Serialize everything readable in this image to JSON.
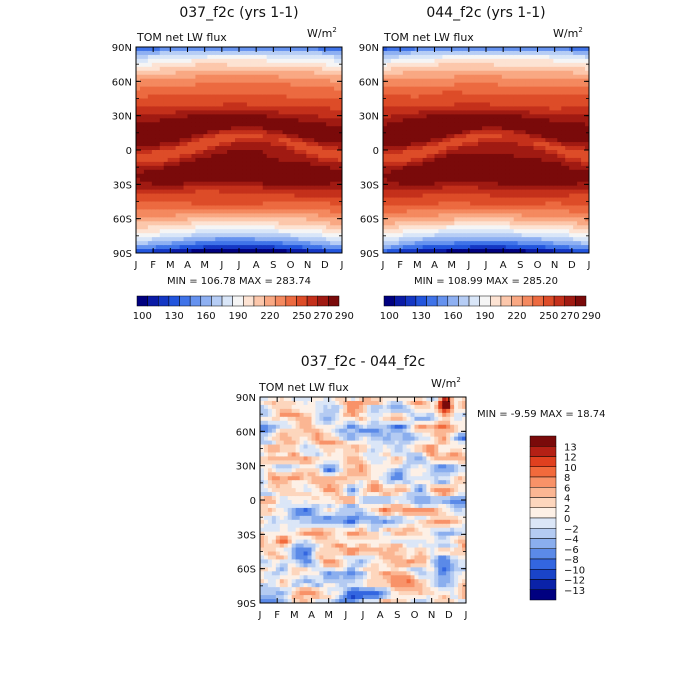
{
  "chart_data": [
    {
      "type": "heatmap",
      "title": "037_f2c (yrs 1-1)",
      "subtitle": "TOM net LW flux",
      "units": "W/m",
      "units_sup": "2",
      "x_ticks": [
        "J",
        "F",
        "M",
        "A",
        "M",
        "J",
        "J",
        "A",
        "S",
        "O",
        "N",
        "D",
        "J"
      ],
      "y_ticks": [
        "90N",
        "60N",
        "30N",
        "0",
        "30S",
        "60S",
        "90S"
      ],
      "y_values": [
        90,
        60,
        30,
        0,
        -30,
        -60,
        -90
      ],
      "stats_text": "MIN = 106.78  MAX = 283.74",
      "min": 106.78,
      "max": 283.74,
      "colorbar_levels": [
        100,
        110,
        120,
        130,
        140,
        150,
        160,
        170,
        180,
        190,
        200,
        210,
        220,
        230,
        240,
        250,
        260,
        270,
        280,
        290
      ],
      "colorbar_labels": [
        "100",
        "130",
        "160",
        "190",
        "220",
        "250",
        "270",
        "290"
      ],
      "colorbar_colors": [
        "#00007f",
        "#0a1ba6",
        "#1437c4",
        "#2255dd",
        "#3f73e8",
        "#6592ef",
        "#8eb0f2",
        "#b6cdf5",
        "#d9e6f8",
        "#f5f5f5",
        "#fde3d3",
        "#fcc7ab",
        "#f9a883",
        "#f4895f",
        "#ec6a40",
        "#dd4c28",
        "#c4301b",
        "#a01a12",
        "#7a0a0a"
      ]
    },
    {
      "type": "heatmap",
      "title": "044_f2c (yrs 1-1)",
      "subtitle": "TOM net LW flux",
      "units": "W/m",
      "units_sup": "2",
      "x_ticks": [
        "J",
        "F",
        "M",
        "A",
        "M",
        "J",
        "J",
        "A",
        "S",
        "O",
        "N",
        "D",
        "J"
      ],
      "y_ticks": [
        "90N",
        "60N",
        "30N",
        "0",
        "30S",
        "60S",
        "90S"
      ],
      "y_values": [
        90,
        60,
        30,
        0,
        -30,
        -60,
        -90
      ],
      "stats_text": "MIN = 108.99  MAX = 285.20",
      "min": 108.99,
      "max": 285.2,
      "colorbar_labels": [
        "100",
        "130",
        "160",
        "190",
        "220",
        "250",
        "270",
        "290"
      ]
    },
    {
      "type": "heatmap",
      "title": "037_f2c - 044_f2c",
      "subtitle": "TOM net LW flux",
      "units": "W/m",
      "units_sup": "2",
      "x_ticks": [
        "J",
        "F",
        "M",
        "A",
        "M",
        "J",
        "J",
        "A",
        "S",
        "O",
        "N",
        "D",
        "J"
      ],
      "y_ticks": [
        "90N",
        "60N",
        "30N",
        "0",
        "30S",
        "60S",
        "90S"
      ],
      "y_values": [
        90,
        60,
        30,
        0,
        -30,
        -60,
        -90
      ],
      "stats_text": "MIN =  -9.59 MAX =  18.74",
      "min": -9.59,
      "max": 18.74,
      "colorbar_levels": [
        -13,
        -12,
        -10,
        -8,
        -6,
        -4,
        -2,
        0,
        2,
        4,
        6,
        8,
        10,
        12,
        13
      ],
      "colorbar_labels": [
        "13",
        "12",
        "10",
        "8",
        "6",
        "4",
        "2",
        "0",
        "−2",
        "−4",
        "−6",
        "−8",
        "−10",
        "−12",
        "−13"
      ],
      "colorbar_colors": [
        "#7a0a0a",
        "#b42015",
        "#e0401f",
        "#f26a3c",
        "#f89268",
        "#fbb693",
        "#fdd6bd",
        "#fdf0e6",
        "#dbe6f7",
        "#b4cbf2",
        "#8aaeee",
        "#5b8ae8",
        "#3366e0",
        "#1a44c8",
        "#0a22a8",
        "#000080"
      ]
    }
  ]
}
